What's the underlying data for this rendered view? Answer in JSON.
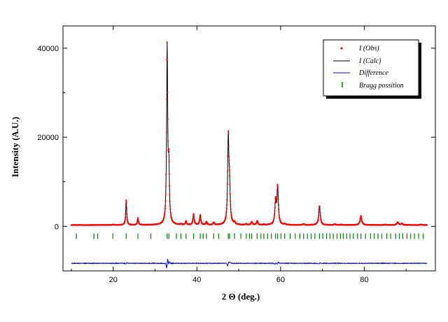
{
  "chart_data": {
    "type": "line",
    "xlabel": "2 Θ (deg.)",
    "ylabel": "Intensity (A.U.)",
    "xlim": [
      8,
      97
    ],
    "ylim": [
      -10000,
      45000
    ],
    "x_ticks": [
      20,
      40,
      60,
      80
    ],
    "y_ticks": [
      0,
      20000,
      40000
    ],
    "x_tick_labels": [
      "20",
      "40",
      "60",
      "80"
    ],
    "y_tick_labels": [
      "0",
      "20000",
      "40000"
    ],
    "grid": false,
    "legend_position": "top-right",
    "background": 300,
    "peaks": [
      {
        "x": 20.0,
        "y": 400
      },
      {
        "x": 23.1,
        "y": 5800
      },
      {
        "x": 25.9,
        "y": 1800
      },
      {
        "x": 29.0,
        "y": 300
      },
      {
        "x": 32.9,
        "y": 40000
      },
      {
        "x": 33.3,
        "y": 12000
      },
      {
        "x": 36.2,
        "y": 500
      },
      {
        "x": 37.4,
        "y": 1100
      },
      {
        "x": 39.2,
        "y": 2800
      },
      {
        "x": 40.8,
        "y": 2500
      },
      {
        "x": 42.3,
        "y": 1000
      },
      {
        "x": 44.0,
        "y": 800
      },
      {
        "x": 47.5,
        "y": 19500
      },
      {
        "x": 47.8,
        "y": 8000
      },
      {
        "x": 49.0,
        "y": 800
      },
      {
        "x": 51.8,
        "y": 500
      },
      {
        "x": 53.1,
        "y": 1000
      },
      {
        "x": 54.4,
        "y": 1200
      },
      {
        "x": 56.0,
        "y": 400
      },
      {
        "x": 58.8,
        "y": 5500
      },
      {
        "x": 59.3,
        "y": 8800
      },
      {
        "x": 61.0,
        "y": 500
      },
      {
        "x": 65.5,
        "y": 500
      },
      {
        "x": 69.3,
        "y": 4600
      },
      {
        "x": 73.0,
        "y": 500
      },
      {
        "x": 74.5,
        "y": 400
      },
      {
        "x": 79.2,
        "y": 2300
      },
      {
        "x": 85.0,
        "y": 400
      },
      {
        "x": 88.0,
        "y": 900
      },
      {
        "x": 89.0,
        "y": 600
      },
      {
        "x": 93.5,
        "y": 400
      }
    ],
    "series": [
      {
        "name": "I (Obs)",
        "style": "dots",
        "color": "#ff0000"
      },
      {
        "name": "I (Calc)",
        "style": "line",
        "color": "#000000"
      },
      {
        "name": "Difference",
        "style": "line",
        "color": "#0000cc",
        "baseline": -8300
      },
      {
        "name": "Bragg possition",
        "style": "ticks",
        "color": "#008000",
        "baseline": -2200
      }
    ],
    "bragg_positions": [
      11.2,
      15.4,
      16.3,
      19.9,
      23.1,
      25.9,
      29.0,
      32.9,
      33.3,
      35.1,
      36.2,
      37.4,
      39.2,
      40.8,
      41.5,
      42.3,
      44.0,
      45.2,
      47.5,
      47.8,
      49.0,
      50.5,
      51.8,
      52.6,
      53.1,
      54.4,
      55.3,
      56.0,
      56.9,
      57.8,
      58.8,
      59.3,
      60.1,
      61.0,
      62.3,
      63.5,
      64.6,
      65.5,
      66.4,
      67.3,
      68.2,
      69.3,
      70.1,
      71.0,
      71.8,
      72.6,
      73.5,
      74.3,
      75.0,
      75.8,
      76.6,
      77.4,
      78.4,
      79.2,
      80.3,
      81.5,
      82.4,
      83.3,
      84.2,
      85.4,
      86.3,
      87.5,
      88.4,
      89.2,
      90.2,
      91.1,
      92.0,
      93.0,
      94.1
    ]
  }
}
